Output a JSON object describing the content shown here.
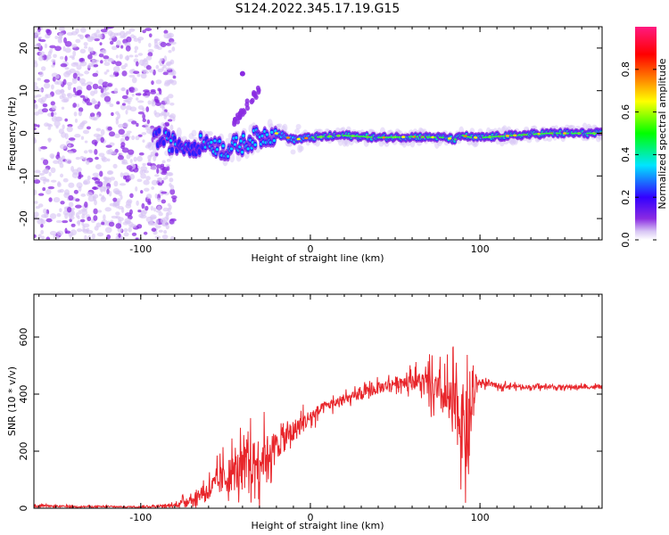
{
  "page": {
    "title": "S124.2022.345.17.19.G15"
  },
  "chart_data": [
    {
      "type": "heatmap",
      "title": "S124.2022.345.17.19.G15",
      "xlabel": "Height of straight line (km)",
      "ylabel": "Frequency (Hz)",
      "xlim": [
        -163,
        172
      ],
      "ylim": [
        -25,
        25
      ],
      "x_ticks": [
        -100,
        0,
        100
      ],
      "y_ticks": [
        -20,
        -10,
        0,
        10,
        20
      ],
      "colorbar": {
        "label": "Normalized spectral amplitude",
        "range": [
          0.0,
          1.0
        ],
        "ticks": [
          0.0,
          0.2,
          0.4,
          0.6,
          0.8
        ],
        "tick_labels": [
          "0.0",
          "0.2",
          "0.4",
          "0.6",
          "0.8"
        ],
        "colors": [
          "#ffffff",
          "#cdb5f0",
          "#8a2be2",
          "#3300ff",
          "#00e5ff",
          "#00ff00",
          "#ffff00",
          "#ff8800",
          "#ff0000",
          "#ff1a80"
        ]
      },
      "ridge": {
        "x": [
          -90,
          -80,
          -70,
          -60,
          -50,
          -45,
          -40,
          -35,
          -30,
          -20,
          -10,
          0,
          20,
          40,
          60,
          80,
          85,
          90,
          95,
          100,
          120,
          140,
          172
        ],
        "y": [
          -1,
          -2.5,
          -3,
          -2,
          -4,
          -3,
          -2.5,
          -1.5,
          -1,
          0,
          -1.5,
          -1,
          -0.5,
          -1,
          -0.8,
          -1,
          -1.5,
          -0.5,
          -1,
          -1,
          -0.5,
          0,
          0
        ]
      },
      "branch": {
        "x": [
          -45,
          -40,
          -35,
          -30
        ],
        "y": [
          2,
          5,
          8,
          10
        ]
      }
    },
    {
      "type": "line",
      "xlabel": "Height of straight line (km)",
      "ylabel": "SNR (10 * v/v)",
      "xlim": [
        -163,
        172
      ],
      "ylim": [
        0,
        750
      ],
      "x_ticks": [
        -100,
        0,
        100
      ],
      "y_ticks": [
        0,
        200,
        400,
        600
      ],
      "color": "#e8262b",
      "envelope": {
        "x": [
          -163,
          -140,
          -100,
          -80,
          -70,
          -60,
          -50,
          -40,
          -30,
          -20,
          -10,
          0,
          10,
          20,
          30,
          40,
          50,
          60,
          70,
          80,
          85,
          90,
          93,
          95,
          98,
          100,
          110,
          130,
          150,
          172
        ],
        "mean": [
          8,
          6,
          5,
          10,
          35,
          65,
          110,
          140,
          170,
          220,
          270,
          320,
          360,
          380,
          400,
          420,
          440,
          450,
          430,
          380,
          350,
          300,
          220,
          350,
          440,
          440,
          430,
          425,
          425,
          425
        ],
        "spread": [
          8,
          6,
          5,
          15,
          40,
          70,
          130,
          160,
          180,
          110,
          90,
          60,
          40,
          35,
          40,
          45,
          45,
          60,
          110,
          160,
          230,
          300,
          320,
          260,
          50,
          25,
          20,
          15,
          15,
          15
        ]
      }
    }
  ]
}
